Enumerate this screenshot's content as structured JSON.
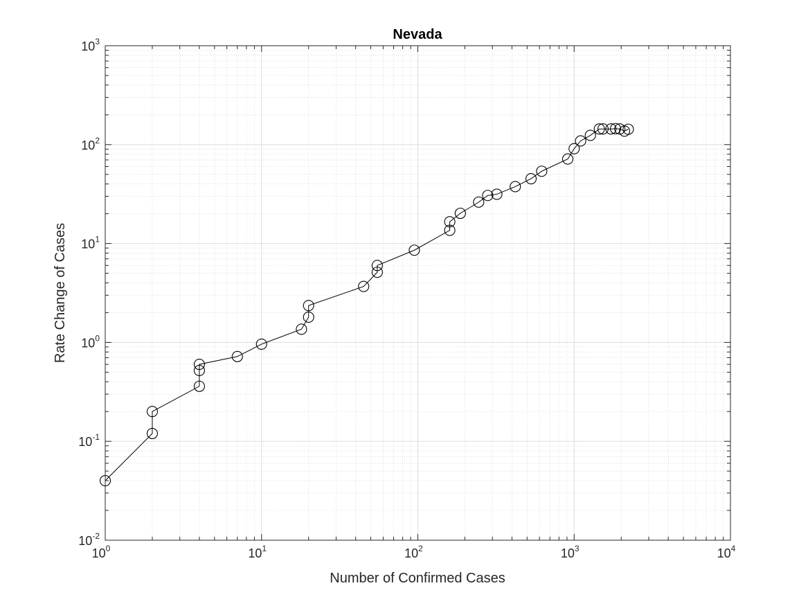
{
  "chart_data": {
    "type": "scatter",
    "title": "Nevada",
    "xlabel": "Number of Confirmed Cases",
    "ylabel": "Rate Change of Cases",
    "xscale": "log",
    "yscale": "log",
    "xlim": [
      1,
      10000
    ],
    "ylim": [
      0.01,
      1000
    ],
    "grid": true,
    "minor_grid": true,
    "marker": "open-circle",
    "line_color": "#000000",
    "x_ticks": [
      {
        "base": "10",
        "exp": "0"
      },
      {
        "base": "10",
        "exp": "1"
      },
      {
        "base": "10",
        "exp": "2"
      },
      {
        "base": "10",
        "exp": "3"
      },
      {
        "base": "10",
        "exp": "4"
      }
    ],
    "y_ticks": [
      {
        "base": "10",
        "exp": "-2"
      },
      {
        "base": "10",
        "exp": "-1"
      },
      {
        "base": "10",
        "exp": "0"
      },
      {
        "base": "10",
        "exp": "1"
      },
      {
        "base": "10",
        "exp": "2"
      },
      {
        "base": "10",
        "exp": "3"
      }
    ],
    "series": [
      {
        "points": [
          [
            1,
            0.04
          ],
          [
            2,
            0.12
          ],
          [
            2,
            0.2
          ],
          [
            4,
            0.36
          ],
          [
            4,
            0.52
          ],
          [
            4,
            0.6
          ],
          [
            7,
            0.72
          ],
          [
            10,
            0.96
          ],
          [
            18,
            1.36
          ],
          [
            20,
            1.8
          ],
          [
            20,
            2.36
          ],
          [
            45,
            3.68
          ],
          [
            55,
            5.12
          ],
          [
            55,
            6
          ],
          [
            95,
            8.56
          ],
          [
            160,
            13.6
          ],
          [
            160,
            16.6
          ],
          [
            187,
            20.2
          ],
          [
            245,
            26.2
          ],
          [
            280,
            30.6
          ],
          [
            320,
            31.5
          ],
          [
            420,
            37.6
          ],
          [
            530,
            45.2
          ],
          [
            620,
            53.8
          ],
          [
            910,
            71.5
          ],
          [
            1000,
            91
          ],
          [
            1100,
            109
          ],
          [
            1270,
            124
          ],
          [
            1450,
            144
          ],
          [
            1530,
            144
          ],
          [
            1720,
            144
          ],
          [
            1840,
            145
          ],
          [
            1960,
            144
          ],
          [
            2100,
            137
          ],
          [
            2220,
            143
          ]
        ]
      }
    ]
  }
}
